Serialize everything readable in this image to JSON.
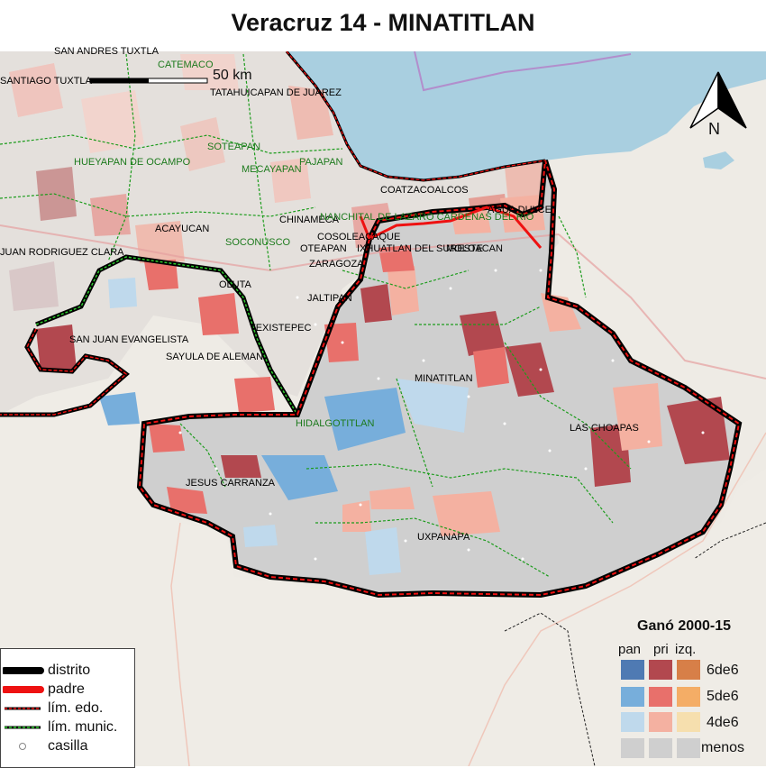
{
  "title": "Veracruz 14 - MINATITLAN",
  "scale_label": "50 km",
  "north_label": "N",
  "municipalities": [
    {
      "name": "SAN ANDRES TUXTLA",
      "style": "black"
    },
    {
      "name": "CATEMACO",
      "style": "green"
    },
    {
      "name": "SANTIAGO TUXTLA",
      "style": "black"
    },
    {
      "name": "TATAHUICAPAN DE JUAREZ",
      "style": "black"
    },
    {
      "name": "SOTEAPAN",
      "style": "green"
    },
    {
      "name": "HUEYAPAN DE OCAMPO",
      "style": "green"
    },
    {
      "name": "MECAYAPAN",
      "style": "green"
    },
    {
      "name": "PAJAPAN",
      "style": "green"
    },
    {
      "name": "COATZACOALCOS",
      "style": "black"
    },
    {
      "name": "AGUA DULCE",
      "style": "black"
    },
    {
      "name": "ACAYUCAN",
      "style": "black"
    },
    {
      "name": "CHINAMECA",
      "style": "black"
    },
    {
      "name": "NANCHITAL DE LAZARO CARDENAS DEL RIO",
      "style": "green"
    },
    {
      "name": "COSOLEACAQUE",
      "style": "black"
    },
    {
      "name": "SOCONUSCO",
      "style": "green"
    },
    {
      "name": "OTEAPAN",
      "style": "black"
    },
    {
      "name": "IXHUATLAN DEL SURESTE",
      "style": "black"
    },
    {
      "name": "MOLOACAN",
      "style": "black"
    },
    {
      "name": "JUAN RODRIGUEZ CLARA",
      "style": "black"
    },
    {
      "name": "ZARAGOZA",
      "style": "black"
    },
    {
      "name": "OLUTA",
      "style": "black"
    },
    {
      "name": "JALTIPAN",
      "style": "black"
    },
    {
      "name": "TEXISTEPEC",
      "style": "black"
    },
    {
      "name": "SAN JUAN EVANGELISTA",
      "style": "black"
    },
    {
      "name": "SAYULA DE ALEMAN",
      "style": "black"
    },
    {
      "name": "MINATITLAN",
      "style": "black"
    },
    {
      "name": "LAS CHOAPAS",
      "style": "black"
    },
    {
      "name": "HIDALGOTITLAN",
      "style": "green"
    },
    {
      "name": "JESUS CARRANZA",
      "style": "black"
    },
    {
      "name": "UXPANAPA",
      "style": "black"
    }
  ],
  "legend": {
    "items": [
      {
        "label": "distrito",
        "kind": "distrito"
      },
      {
        "label": "padre",
        "kind": "padre"
      },
      {
        "label": "lím. edo.",
        "kind": "edo"
      },
      {
        "label": "lím. munic.",
        "kind": "munic"
      },
      {
        "label": "casilla",
        "kind": "casilla"
      }
    ]
  },
  "winner_legend": {
    "title": "Ganó 2000-15",
    "columns": [
      "pan",
      "pri",
      "izq."
    ],
    "rows": [
      {
        "label": "6de6",
        "colors": [
          "#4f7ab3",
          "#b2484f",
          "#d77f48"
        ]
      },
      {
        "label": "5de6",
        "colors": [
          "#77aedb",
          "#e8706b",
          "#f4ad66"
        ]
      },
      {
        "label": "4de6",
        "colors": [
          "#bfd9ec",
          "#f4b1a1",
          "#f6dfae"
        ]
      },
      {
        "label": "menos",
        "colors": [
          "#cfcfcf",
          "#cfcfcf",
          "#cfcfcf"
        ]
      }
    ]
  },
  "colors": {
    "sea": "#a9cfe0",
    "land": "#efece6",
    "district_fill": "#cfcfcf",
    "district_border": "#000000",
    "padre_border": "#ee1111"
  }
}
